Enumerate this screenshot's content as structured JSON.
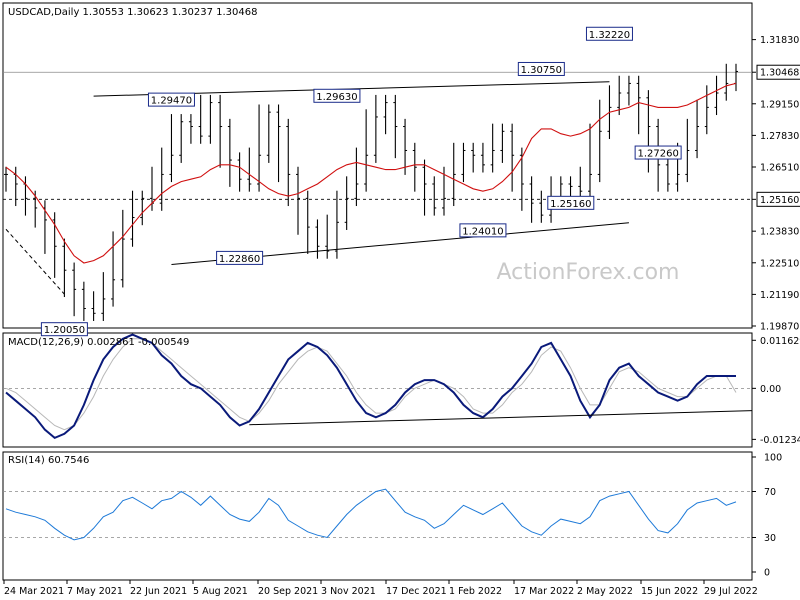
{
  "chart_data": [
    {
      "type": "line",
      "style": "ohlc-bars",
      "header": {
        "symbol": "USDCAD,Daily",
        "open": "1.30553",
        "high": "1.30623",
        "low": "1.30237",
        "close": "1.30468"
      },
      "watermark": "ActionForex.com",
      "x_ticks": [
        "24 Mar 2021",
        "7 May 2021",
        "22 Jun 2021",
        "5 Aug 2021",
        "20 Sep 2021",
        "3 Nov 2021",
        "17 Dec 2021",
        "1 Feb 2022",
        "17 Mar 2022",
        "2 May 2022",
        "15 Jun 2022",
        "29 Jul 2022"
      ],
      "y_ticks": [
        "1.31830",
        "1.30468",
        "1.29150",
        "1.27830",
        "1.26510",
        "1.25160",
        "1.23830",
        "1.22510",
        "1.21190",
        "1.19870"
      ],
      "ylim": [
        1.1987,
        1.3315
      ],
      "last_price": "1.30468",
      "price": [
        1.262,
        1.258,
        1.252,
        1.248,
        1.243,
        1.232,
        1.222,
        1.214,
        1.206,
        1.204,
        1.21,
        1.218,
        1.235,
        1.244,
        1.252,
        1.25,
        1.262,
        1.27,
        1.284,
        1.282,
        1.278,
        1.292,
        1.282,
        1.268,
        1.26,
        1.258,
        1.27,
        1.288,
        1.282,
        1.262,
        1.252,
        1.24,
        1.232,
        1.23,
        1.242,
        1.252,
        1.258,
        1.27,
        1.286,
        1.292,
        1.282,
        1.272,
        1.265,
        1.258,
        1.248,
        1.252,
        1.262,
        1.272,
        1.27,
        1.266,
        1.272,
        1.28,
        1.27,
        1.258,
        1.25,
        1.245,
        1.252,
        1.258,
        1.257,
        1.255,
        1.262,
        1.28,
        1.29,
        1.296,
        1.3,
        1.294,
        1.282,
        1.266,
        1.258,
        1.262,
        1.272,
        1.282,
        1.29,
        1.296,
        1.3,
        1.305
      ],
      "ma": [
        1.265,
        1.262,
        1.258,
        1.253,
        1.247,
        1.241,
        1.234,
        1.228,
        1.225,
        1.226,
        1.228,
        1.232,
        1.236,
        1.241,
        1.246,
        1.25,
        1.254,
        1.257,
        1.259,
        1.26,
        1.261,
        1.264,
        1.266,
        1.266,
        1.265,
        1.262,
        1.259,
        1.256,
        1.254,
        1.253,
        1.254,
        1.256,
        1.258,
        1.261,
        1.264,
        1.266,
        1.267,
        1.266,
        1.265,
        1.264,
        1.264,
        1.265,
        1.266,
        1.266,
        1.264,
        1.262,
        1.26,
        1.258,
        1.256,
        1.255,
        1.256,
        1.259,
        1.263,
        1.269,
        1.277,
        1.281,
        1.281,
        1.279,
        1.278,
        1.279,
        1.281,
        1.285,
        1.288,
        1.289,
        1.29,
        1.292,
        1.291,
        1.29,
        1.29,
        1.29,
        1.291,
        1.293,
        1.295,
        1.297,
        1.299,
        1.3
      ],
      "labels": [
        "1.20050",
        "1.29470",
        "1.22860",
        "1.29630",
        "1.24010",
        "1.30750",
        "1.25160",
        "1.32220",
        "1.27260"
      ],
      "level_labels": [
        "1.30468",
        "1.25160"
      ]
    },
    {
      "type": "line",
      "title": "MACD(12,26,9) 0.002861 -0.000549",
      "y_ticks": [
        "0.011629",
        "0.00",
        "-0.012348"
      ],
      "ylim": [
        -0.0125,
        0.0117
      ],
      "macd": [
        -0.001,
        -0.003,
        -0.005,
        -0.007,
        -0.01,
        -0.012,
        -0.011,
        -0.009,
        -0.004,
        0.002,
        0.007,
        0.01,
        0.012,
        0.013,
        0.012,
        0.011,
        0.008,
        0.006,
        0.003,
        0.001,
        0.0,
        -0.002,
        -0.004,
        -0.007,
        -0.009,
        -0.008,
        -0.005,
        -0.001,
        0.003,
        0.007,
        0.009,
        0.011,
        0.01,
        0.008,
        0.005,
        0.001,
        -0.003,
        -0.006,
        -0.007,
        -0.006,
        -0.004,
        -0.001,
        0.001,
        0.002,
        0.002,
        0.001,
        -0.001,
        -0.004,
        -0.006,
        -0.007,
        -0.005,
        -0.002,
        0.0,
        0.003,
        0.006,
        0.01,
        0.011,
        0.007,
        0.003,
        -0.003,
        -0.007,
        -0.004,
        0.002,
        0.005,
        0.006,
        0.003,
        0.001,
        -0.001,
        -0.002,
        -0.003,
        -0.002,
        0.001,
        0.003,
        0.003,
        0.003,
        0.003
      ],
      "signal": [
        0.0,
        -0.001,
        -0.003,
        -0.005,
        -0.007,
        -0.009,
        -0.01,
        -0.009,
        -0.006,
        -0.002,
        0.003,
        0.007,
        0.01,
        0.012,
        0.012,
        0.011,
        0.009,
        0.007,
        0.005,
        0.003,
        0.001,
        -0.001,
        -0.003,
        -0.005,
        -0.007,
        -0.008,
        -0.006,
        -0.003,
        0.001,
        0.004,
        0.007,
        0.009,
        0.01,
        0.009,
        0.006,
        0.003,
        -0.001,
        -0.004,
        -0.006,
        -0.006,
        -0.005,
        -0.002,
        0.0,
        0.001,
        0.002,
        0.001,
        0.0,
        -0.002,
        -0.005,
        -0.006,
        -0.006,
        -0.004,
        -0.001,
        0.001,
        0.004,
        0.008,
        0.01,
        0.009,
        0.005,
        0.0,
        -0.004,
        -0.004,
        0.0,
        0.004,
        0.005,
        0.004,
        0.002,
        0.0,
        -0.001,
        -0.002,
        -0.002,
        0.0,
        0.002,
        0.003,
        0.003,
        -0.001
      ]
    },
    {
      "type": "line",
      "title": "RSI(14) 60.7546",
      "y_ticks": [
        "100",
        "70",
        "30",
        "0"
      ],
      "ylim": [
        0,
        100
      ],
      "rsi": [
        55,
        52,
        50,
        48,
        45,
        38,
        32,
        28,
        30,
        38,
        48,
        52,
        62,
        65,
        60,
        55,
        62,
        64,
        70,
        65,
        58,
        66,
        58,
        50,
        46,
        44,
        52,
        64,
        58,
        45,
        40,
        35,
        32,
        30,
        40,
        50,
        58,
        64,
        70,
        72,
        62,
        52,
        48,
        45,
        38,
        42,
        50,
        58,
        54,
        50,
        55,
        60,
        50,
        40,
        35,
        32,
        40,
        46,
        44,
        42,
        48,
        62,
        66,
        68,
        70,
        58,
        46,
        36,
        34,
        42,
        54,
        60,
        62,
        64,
        58,
        61
      ]
    }
  ]
}
